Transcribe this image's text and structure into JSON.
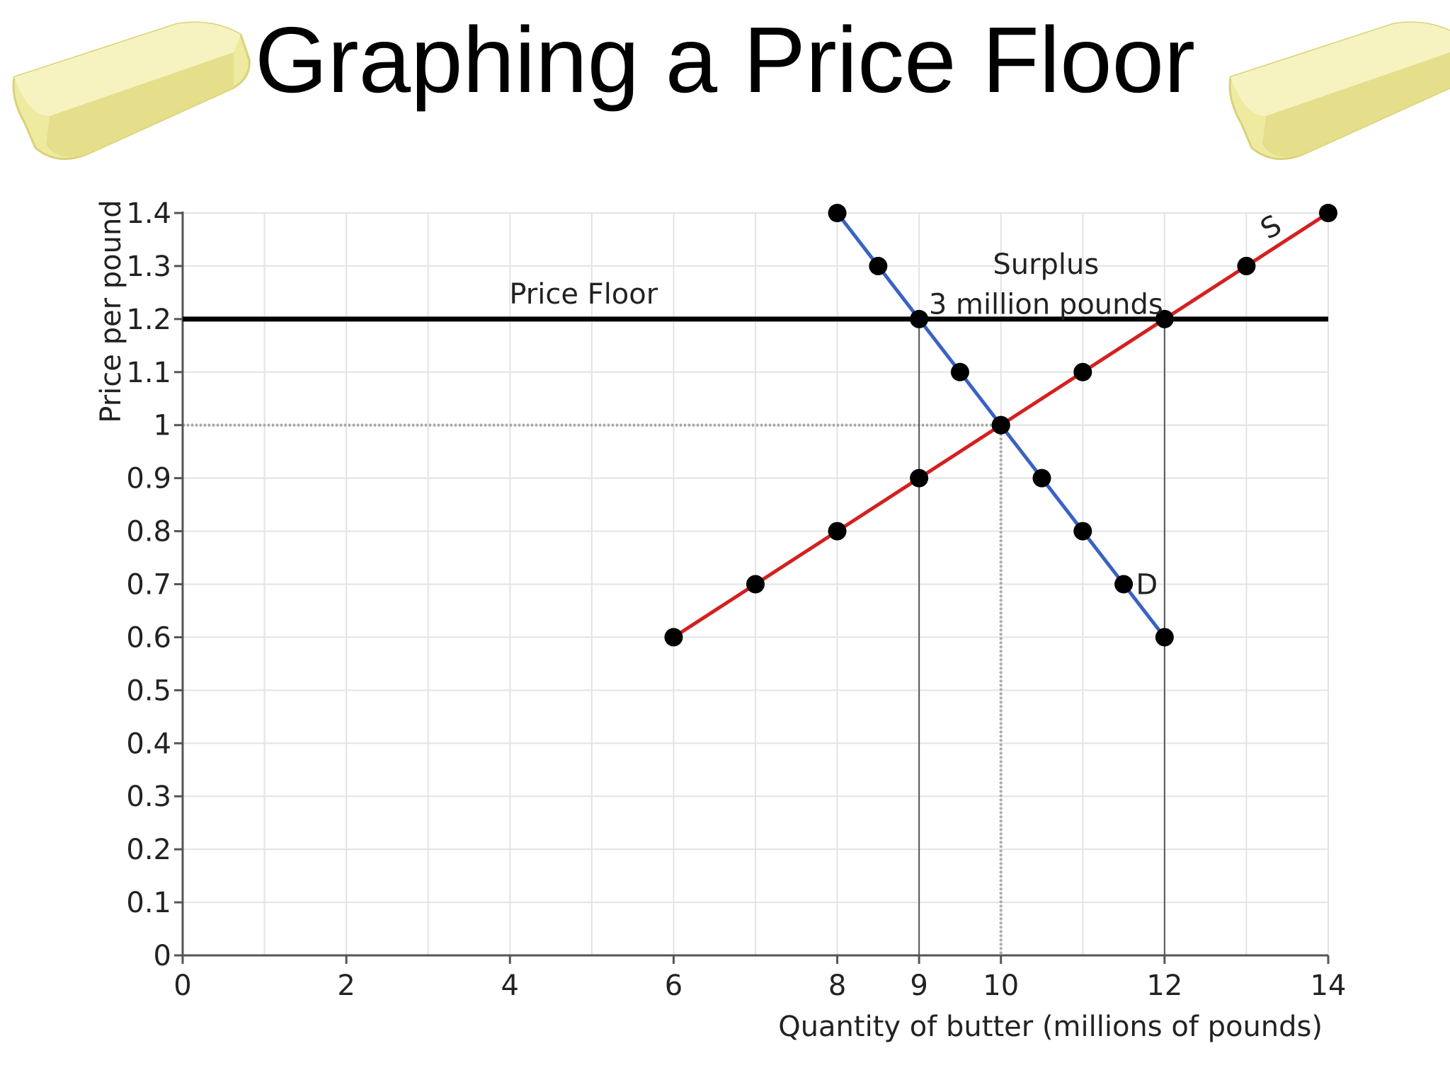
{
  "slide": {
    "title": "Graphing a Price Floor"
  },
  "decor": {
    "left_image": "butter-stick",
    "right_image": "butter-stick",
    "butter_color": "#eeeaa0"
  },
  "chart_data": {
    "type": "line",
    "title": "",
    "xlabel": "Quantity of butter (millions of pounds)",
    "ylabel": "Price per pound",
    "xlim": [
      0,
      14
    ],
    "ylim": [
      0,
      1.4
    ],
    "x_ticks": [
      0,
      2,
      4,
      6,
      8,
      9,
      10,
      12,
      14
    ],
    "y_ticks": [
      0,
      0.1,
      0.2,
      0.3,
      0.4,
      0.5,
      0.6,
      0.7,
      0.8,
      0.9,
      1,
      1.1,
      1.2,
      1.3,
      1.4
    ],
    "y_tick_labels": [
      "0",
      "0.1",
      "0.2",
      "0.3",
      "0.4",
      "0.5",
      "0.6",
      "0.7",
      "0.8",
      "0.9",
      "1",
      "1.1",
      "1.2",
      "1.3",
      "1.4"
    ],
    "grid": true,
    "series": [
      {
        "name": "S",
        "color": "#d42020",
        "points": [
          [
            6,
            0.6
          ],
          [
            7,
            0.7
          ],
          [
            8,
            0.8
          ],
          [
            9,
            0.9
          ],
          [
            10,
            1.0
          ],
          [
            11,
            1.1
          ],
          [
            12,
            1.2
          ],
          [
            13,
            1.3
          ],
          [
            14,
            1.4
          ]
        ]
      },
      {
        "name": "D",
        "color": "#3a62c4",
        "points": [
          [
            8,
            1.4
          ],
          [
            8.5,
            1.3
          ],
          [
            9,
            1.2
          ],
          [
            9.5,
            1.1
          ],
          [
            10,
            1.0
          ],
          [
            10.5,
            0.9
          ],
          [
            11,
            0.8
          ],
          [
            11.5,
            0.7
          ],
          [
            12,
            0.6
          ]
        ]
      }
    ],
    "price_floor": {
      "value": 1.2,
      "label": "Price Floor",
      "color": "#000000"
    },
    "equilibrium": {
      "x": 10,
      "y": 1.0
    },
    "surplus": {
      "label_line1": "Surplus",
      "label_line2": "3 million pounds",
      "quantity_demanded": 9,
      "quantity_supplied": 12
    }
  }
}
